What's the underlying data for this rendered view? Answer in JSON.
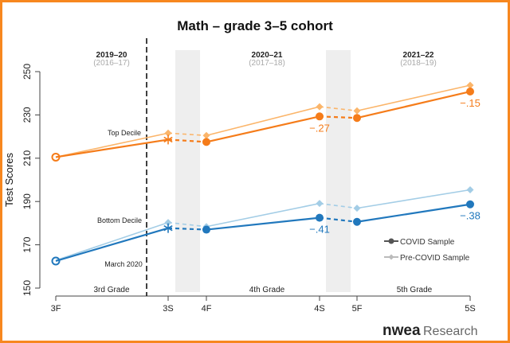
{
  "chart_data": {
    "type": "line",
    "title": "Math – grade 3–5 cohort",
    "ylabel": "Test Scores",
    "xlabel": "",
    "ylim": [
      150,
      250
    ],
    "yticks": [
      150,
      170,
      190,
      210,
      230,
      250
    ],
    "categories": [
      "3F",
      "3S",
      "4F",
      "4S",
      "5F",
      "5S"
    ],
    "school_years": [
      {
        "label": "2019–20",
        "sub": "(2016–17)"
      },
      {
        "label": "2020–21",
        "sub": "(2017–18)"
      },
      {
        "label": "2021–22",
        "sub": "(2018–19)"
      }
    ],
    "grade_labels": [
      "3rd Grade",
      "4th Grade",
      "5th Grade"
    ],
    "group_labels": {
      "top": "Top Decile",
      "bottom": "Bottom Decile"
    },
    "event_label": "March 2020",
    "series": [
      {
        "name": "COVID Sample",
        "group": "top",
        "color": "#f57c1a",
        "values": [
          210.5,
          218.6,
          217.5,
          229.3,
          228.6,
          240.8
        ]
      },
      {
        "name": "Pre-COVID Sample",
        "group": "top",
        "color": "#fbb56a",
        "values": [
          210.5,
          221.6,
          220.5,
          233.8,
          231.9,
          243.7
        ]
      },
      {
        "name": "COVID Sample",
        "group": "bottom",
        "color": "#2178bd",
        "values": [
          162.5,
          177.7,
          177.0,
          182.5,
          180.6,
          188.7
        ]
      },
      {
        "name": "Pre-COVID Sample",
        "group": "bottom",
        "color": "#a3cde6",
        "values": [
          162.8,
          180.3,
          178.4,
          189.1,
          186.9,
          195.4
        ]
      }
    ],
    "annotations": [
      {
        "series": 0,
        "point": "4S",
        "text": "−.27"
      },
      {
        "series": 0,
        "point": "5S",
        "text": "−.15"
      },
      {
        "series": 2,
        "point": "4S",
        "text": "−.41"
      },
      {
        "series": 2,
        "point": "5S",
        "text": "−.38"
      }
    ],
    "legend": {
      "position": "bottom-right",
      "items": [
        "COVID Sample",
        "Pre-COVID Sample"
      ],
      "colors": [
        "#555555",
        "#bbbbbb"
      ]
    },
    "grid": false
  },
  "branding": {
    "logo": "nwea",
    "suffix": "Research"
  },
  "colors": {
    "frame": "#f7871f",
    "band": "#eeeeee"
  }
}
